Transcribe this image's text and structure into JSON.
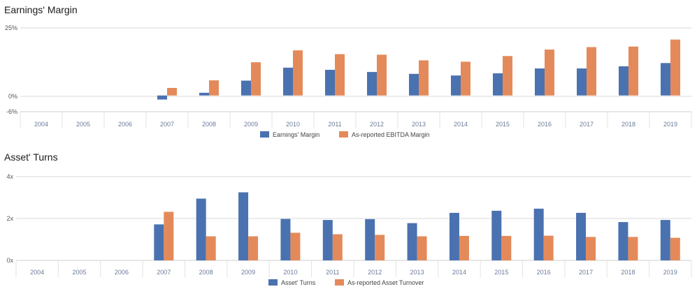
{
  "chart_data": [
    {
      "type": "bar",
      "title": "Earnings' Margin",
      "categories": [
        "2004",
        "2005",
        "2006",
        "2007",
        "2008",
        "2009",
        "2010",
        "2011",
        "2012",
        "2013",
        "2014",
        "2015",
        "2016",
        "2017",
        "2018",
        "2019"
      ],
      "y_ticks": [
        "25%",
        "0%",
        "-6%"
      ],
      "ylim": [
        -6,
        25
      ],
      "series": [
        {
          "name": "Earnings' Margin",
          "color": "#4a72b0",
          "values": [
            null,
            null,
            null,
            -1.5,
            1.0,
            5.5,
            10.3,
            9.5,
            8.7,
            8.0,
            7.4,
            8.2,
            10.0,
            10.0,
            10.8,
            12.0
          ]
        },
        {
          "name": "As-reported EBITDA Margin",
          "color": "#e48a5a",
          "values": [
            null,
            null,
            null,
            2.8,
            5.6,
            12.3,
            16.7,
            15.3,
            15.1,
            13.0,
            12.5,
            14.6,
            17.0,
            17.9,
            18.1,
            20.7
          ]
        }
      ],
      "legend": "bottom-center",
      "grid": true
    },
    {
      "type": "bar",
      "title": "Asset' Turns",
      "categories": [
        "2004",
        "2005",
        "2006",
        "2007",
        "2008",
        "2009",
        "2010",
        "2011",
        "2012",
        "2013",
        "2014",
        "2015",
        "2016",
        "2017",
        "2018",
        "2019"
      ],
      "y_ticks": [
        "4x",
        "2x",
        "0x"
      ],
      "ylim": [
        0,
        4
      ],
      "series": [
        {
          "name": "Asset' Turns",
          "color": "#4a72b0",
          "values": [
            null,
            null,
            null,
            1.72,
            2.95,
            3.25,
            1.98,
            1.93,
            1.97,
            1.78,
            2.27,
            2.37,
            2.47,
            2.27,
            1.83,
            1.93
          ]
        },
        {
          "name": "As-reported Asset Turnover",
          "color": "#e48a5a",
          "values": [
            null,
            null,
            null,
            2.32,
            1.15,
            1.15,
            1.32,
            1.25,
            1.22,
            1.15,
            1.17,
            1.17,
            1.18,
            1.12,
            1.12,
            1.08
          ]
        }
      ],
      "legend": "bottom-center",
      "grid": true
    }
  ]
}
